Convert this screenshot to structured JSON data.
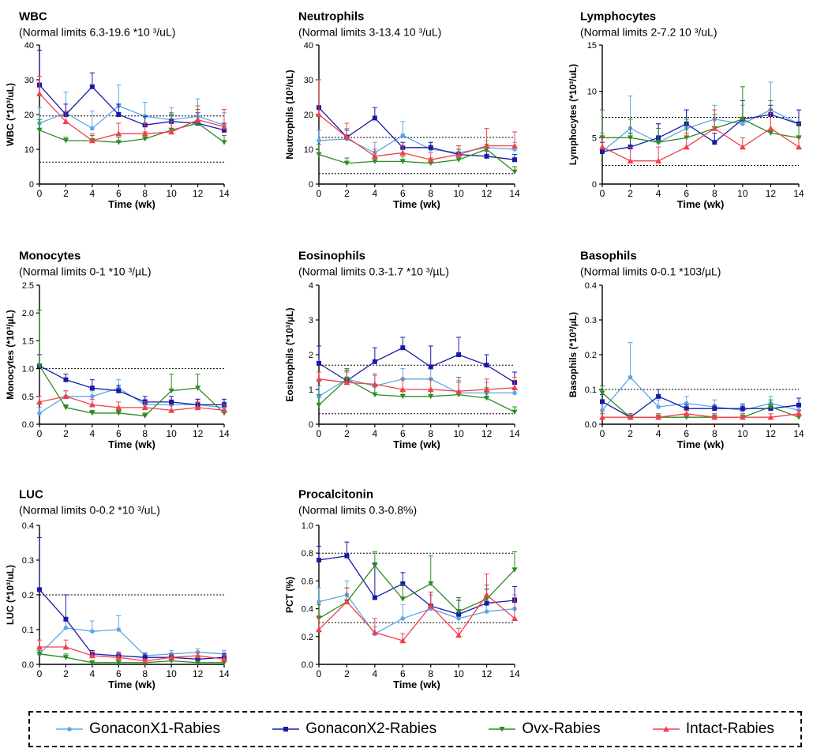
{
  "x": [
    0,
    2,
    4,
    6,
    8,
    10,
    12,
    14
  ],
  "xlabel": "Time (wk)",
  "series": [
    {
      "name": "GonaconX1-Rabies",
      "color": "#5aa8e8",
      "marker": "circle"
    },
    {
      "name": "GonaconX2-Rabies",
      "color": "#1a1aa8",
      "marker": "square"
    },
    {
      "name": "Ovx-Rabies",
      "color": "#2e8b22",
      "marker": "triangle-down"
    },
    {
      "name": "Intact-Rabies",
      "color": "#f0404a",
      "marker": "triangle-up"
    }
  ],
  "chart_data": [
    {
      "type": "line",
      "title": "WBC",
      "subtitle": "(Normal limits 6.3-19.6 *10 ³/uL)",
      "ylabel": "WBC (*10³/uL)",
      "ylim": [
        0,
        40
      ],
      "yticks": [
        0,
        10,
        20,
        30,
        40
      ],
      "ytick_labels": [
        "0",
        "10",
        "20",
        "30",
        "40"
      ],
      "normal_limits": [
        6.3,
        19.6
      ],
      "series": [
        {
          "name": "GonaconX1-Rabies",
          "values": [
            17.5,
            20.5,
            16,
            22.5,
            19.5,
            18.5,
            19.5,
            17
          ],
          "errors": [
            4.5,
            6,
            5,
            6,
            4,
            3.5,
            5,
            3.5
          ]
        },
        {
          "name": "GonaconX2-Rabies",
          "values": [
            28.5,
            20,
            28,
            20,
            17,
            18,
            17.5,
            15.5
          ],
          "errors": [
            10,
            3,
            4,
            3,
            2.5,
            2,
            3,
            2
          ]
        },
        {
          "name": "Ovx-Rabies",
          "values": [
            15.5,
            12.5,
            12.5,
            12,
            13,
            15.5,
            17.5,
            12
          ],
          "errors": [
            3,
            1,
            1.5,
            1.5,
            2,
            5,
            4,
            2
          ]
        },
        {
          "name": "Intact-Rabies",
          "values": [
            26,
            18,
            12.5,
            14.5,
            14.5,
            15,
            18.5,
            16.5
          ],
          "errors": [
            5,
            3,
            2,
            3,
            3,
            3,
            4,
            5
          ]
        }
      ]
    },
    {
      "type": "line",
      "title": "Neutrophils",
      "subtitle": "(Normal limits 3-13.4 10 ³/uL)",
      "ylabel": "Neutrophils (10³/uL)",
      "ylim": [
        0,
        40
      ],
      "yticks": [
        0,
        10,
        20,
        30,
        40
      ],
      "ytick_labels": [
        "0",
        "10",
        "20",
        "30",
        "40"
      ],
      "normal_limits": [
        3,
        13.4
      ],
      "series": [
        {
          "name": "GonaconX1-Rabies",
          "values": [
            12.5,
            13,
            9,
            14,
            10,
            9,
            10.5,
            10
          ],
          "errors": [
            3,
            3,
            3,
            4,
            2,
            2,
            2,
            2
          ]
        },
        {
          "name": "GonaconX2-Rabies",
          "values": [
            22,
            13.5,
            19,
            10.5,
            10.5,
            8.5,
            8,
            7
          ],
          "errors": [
            8,
            2,
            3,
            1.5,
            1.5,
            1.5,
            1.5,
            1.5
          ]
        },
        {
          "name": "Ovx-Rabies",
          "values": [
            8.5,
            6,
            6.5,
            6.5,
            6,
            7,
            10,
            3.5
          ],
          "errors": [
            3,
            1.5,
            1.5,
            1.5,
            1.5,
            3,
            1.5,
            1.5
          ]
        },
        {
          "name": "Intact-Rabies",
          "values": [
            20,
            13.5,
            8,
            9,
            7,
            8.5,
            11,
            11
          ],
          "errors": [
            10,
            4,
            2,
            2,
            2,
            2.5,
            5,
            4
          ]
        }
      ]
    },
    {
      "type": "line",
      "title": "Lymphocytes",
      "subtitle": "(Normal limits 2-7.2 10 ³/uL)",
      "ylabel": "Lymphocytes (*10³/uL)",
      "ylim": [
        0,
        15
      ],
      "yticks": [
        0,
        5,
        10,
        15
      ],
      "ytick_labels": [
        "0",
        "5",
        "10",
        "15"
      ],
      "normal_limits": [
        2,
        7.2
      ],
      "series": [
        {
          "name": "GonaconX1-Rabies",
          "values": [
            3.5,
            6,
            4.5,
            6,
            7,
            6.5,
            8,
            6.5
          ],
          "errors": [
            2,
            3.5,
            2,
            2,
            1.5,
            2,
            3,
            1.5
          ]
        },
        {
          "name": "GonaconX2-Rabies",
          "values": [
            3.5,
            4,
            5,
            6.5,
            4.5,
            7,
            7.5,
            6.5
          ],
          "errors": [
            1,
            1.5,
            1.5,
            1.5,
            1,
            2,
            1,
            1.5
          ]
        },
        {
          "name": "Ovx-Rabies",
          "values": [
            5,
            5,
            4.5,
            5,
            6,
            7,
            5.5,
            5
          ],
          "errors": [
            3,
            2,
            1.5,
            2,
            1.5,
            3.5,
            3.5,
            1.5
          ]
        },
        {
          "name": "Intact-Rabies",
          "values": [
            4,
            2.5,
            2.5,
            4,
            6,
            4,
            6,
            4
          ],
          "errors": [
            1,
            1.5,
            1.5,
            1.5,
            2,
            1,
            2,
            1
          ]
        }
      ]
    },
    {
      "type": "line",
      "title": "Monocytes",
      "subtitle": "(Normal limits 0-1 *10 ³/µL)",
      "ylabel": "Monocytes (*10³/µL)",
      "ylim": [
        0,
        2.5
      ],
      "yticks": [
        0,
        0.5,
        1,
        1.5,
        2,
        2.5
      ],
      "ytick_labels": [
        "0.0",
        "0.5",
        "1.0",
        "1.5",
        "2.0",
        "2.5"
      ],
      "normal_limits": [
        0,
        1
      ],
      "series": [
        {
          "name": "GonaconX1-Rabies",
          "values": [
            0.2,
            0.5,
            0.5,
            0.65,
            0.35,
            0.35,
            0.35,
            0.3
          ],
          "errors": [
            0.1,
            0.1,
            0.1,
            0.15,
            0.1,
            0.05,
            0.1,
            0.1
          ]
        },
        {
          "name": "GonaconX2-Rabies",
          "values": [
            1.05,
            0.8,
            0.65,
            0.6,
            0.4,
            0.4,
            0.35,
            0.35
          ],
          "errors": [
            0.2,
            0.1,
            0.15,
            0.1,
            0.1,
            0.1,
            0.1,
            0.1
          ]
        },
        {
          "name": "Ovx-Rabies",
          "values": [
            1.05,
            0.3,
            0.2,
            0.2,
            0.15,
            0.6,
            0.65,
            0.2
          ],
          "errors": [
            1,
            0.05,
            0.05,
            0.05,
            0.05,
            0.3,
            0.25,
            0.05
          ]
        },
        {
          "name": "Intact-Rabies",
          "values": [
            0.4,
            0.5,
            0.35,
            0.3,
            0.3,
            0.25,
            0.3,
            0.25
          ],
          "errors": [
            0.1,
            0.1,
            0.1,
            0.1,
            0.1,
            0.1,
            0.1,
            0.1
          ]
        }
      ]
    },
    {
      "type": "line",
      "title": "Eosinophils",
      "subtitle": "(Normal limits 0.3-1.7 *10 ³/µL)",
      "ylabel": "Eosinophils (*10³/µL)",
      "ylim": [
        0,
        4
      ],
      "yticks": [
        0,
        1,
        2,
        3,
        4
      ],
      "ytick_labels": [
        "0",
        "1",
        "2",
        "3",
        "4"
      ],
      "normal_limits": [
        0.3,
        1.7
      ],
      "series": [
        {
          "name": "GonaconX1-Rabies",
          "values": [
            0.8,
            1.3,
            1.1,
            1.3,
            1.3,
            0.9,
            0.9,
            0.9
          ],
          "errors": [
            0.3,
            0.3,
            0.3,
            0.3,
            0.3,
            0.3,
            0.3,
            0.3
          ]
        },
        {
          "name": "GonaconX2-Rabies",
          "values": [
            1.75,
            1.25,
            1.8,
            2.2,
            1.65,
            2,
            1.7,
            1.2
          ],
          "errors": [
            0.5,
            0.3,
            0.4,
            0.3,
            0.6,
            0.5,
            0.3,
            0.3
          ]
        },
        {
          "name": "Ovx-Rabies",
          "values": [
            0.55,
            1.3,
            0.85,
            0.8,
            0.8,
            0.85,
            0.75,
            0.35
          ],
          "errors": [
            0.3,
            0.3,
            0.3,
            0.2,
            0.2,
            0.5,
            0.3,
            0.15
          ]
        },
        {
          "name": "Intact-Rabies",
          "values": [
            1.3,
            1.2,
            1.15,
            1,
            1,
            0.95,
            1,
            1.05
          ],
          "errors": [
            0.2,
            0.3,
            0.3,
            0.3,
            0.3,
            0.3,
            0.3,
            0.3
          ]
        }
      ]
    },
    {
      "type": "line",
      "title": "Basophils",
      "subtitle": "(Normal limits 0-0.1 *103/µL)",
      "ylabel": "Basophils (*10³/µL)",
      "ylim": [
        0,
        0.4
      ],
      "yticks": [
        0,
        0.1,
        0.2,
        0.3,
        0.4
      ],
      "ytick_labels": [
        "0.0",
        "0.1",
        "0.2",
        "0.3",
        "0.4"
      ],
      "normal_limits": [
        0,
        0.1
      ],
      "series": [
        {
          "name": "GonaconX1-Rabies",
          "values": [
            0.04,
            0.135,
            0.05,
            0.06,
            0.05,
            0.04,
            0.06,
            0.04
          ],
          "errors": [
            0.02,
            0.1,
            0.02,
            0.02,
            0.02,
            0.02,
            0.02,
            0.02
          ]
        },
        {
          "name": "GonaconX2-Rabies",
          "values": [
            0.065,
            0.02,
            0.08,
            0.045,
            0.045,
            0.045,
            0.045,
            0.055
          ],
          "errors": [
            0.02,
            0.01,
            0.02,
            0.01,
            0.01,
            0.01,
            0.01,
            0.02
          ]
        },
        {
          "name": "Ovx-Rabies",
          "values": [
            0.09,
            0.02,
            0.02,
            0.02,
            0.02,
            0.02,
            0.05,
            0.02
          ],
          "errors": [
            0.02,
            0.01,
            0.01,
            0.01,
            0.01,
            0.01,
            0.02,
            0.01
          ]
        },
        {
          "name": "Intact-Rabies",
          "values": [
            0.02,
            0.02,
            0.02,
            0.03,
            0.02,
            0.02,
            0.02,
            0.03
          ],
          "errors": [
            0.01,
            0.01,
            0.01,
            0.01,
            0.01,
            0.01,
            0.01,
            0.01
          ]
        }
      ]
    },
    {
      "type": "line",
      "title": "LUC",
      "subtitle": "(Normal limits 0-0.2 *10 ³/uL)",
      "ylabel": "LUC (*10³/uL)",
      "ylim": [
        0,
        0.4
      ],
      "yticks": [
        0,
        0.1,
        0.2,
        0.3,
        0.4
      ],
      "ytick_labels": [
        "0.0",
        "0.1",
        "0.2",
        "0.3",
        "0.4"
      ],
      "normal_limits": [
        0,
        0.2
      ],
      "series": [
        {
          "name": "GonaconX1-Rabies",
          "values": [
            0.03,
            0.105,
            0.095,
            0.1,
            0.025,
            0.03,
            0.035,
            0.03
          ],
          "errors": [
            0.02,
            0.03,
            0.03,
            0.04,
            0.01,
            0.01,
            0.01,
            0.01
          ]
        },
        {
          "name": "GonaconX2-Rabies",
          "values": [
            0.215,
            0.13,
            0.03,
            0.025,
            0.02,
            0.02,
            0.015,
            0.02
          ],
          "errors": [
            0.15,
            0.07,
            0.01,
            0.01,
            0.01,
            0.01,
            0.01,
            0.01
          ]
        },
        {
          "name": "Ovx-Rabies",
          "values": [
            0.03,
            0.02,
            0.005,
            0.005,
            0.005,
            0.01,
            0.005,
            0.005
          ],
          "errors": [
            0.01,
            0.01,
            0.005,
            0.005,
            0.005,
            0.005,
            0.005,
            0.005
          ]
        },
        {
          "name": "Intact-Rabies",
          "values": [
            0.05,
            0.05,
            0.025,
            0.02,
            0.01,
            0.02,
            0.025,
            0.015
          ],
          "errors": [
            0.02,
            0.02,
            0.01,
            0.01,
            0.005,
            0.01,
            0.01,
            0.01
          ]
        }
      ]
    },
    {
      "type": "line",
      "title": "Procalcitonin",
      "subtitle": "(Normal limits 0.3-0.8%)",
      "ylabel": "PCT (%)",
      "ylim": [
        0,
        1
      ],
      "yticks": [
        0,
        0.2,
        0.4,
        0.6,
        0.8,
        1
      ],
      "ytick_labels": [
        "0.0",
        "0.2",
        "0.4",
        "0.6",
        "0.8",
        "1.0"
      ],
      "normal_limits": [
        0.3,
        0.8
      ],
      "series": [
        {
          "name": "GonaconX1-Rabies",
          "values": [
            0.45,
            0.5,
            0.22,
            0.33,
            0.4,
            0.33,
            0.38,
            0.4
          ],
          "errors": [
            0.1,
            0.1,
            0.05,
            0.1,
            0.1,
            0.15,
            0.1,
            0.1
          ]
        },
        {
          "name": "GonaconX2-Rabies",
          "values": [
            0.75,
            0.78,
            0.48,
            0.58,
            0.42,
            0.36,
            0.44,
            0.46
          ],
          "errors": [
            0.1,
            0.1,
            0.25,
            0.08,
            0.1,
            0.1,
            0.1,
            0.1
          ]
        },
        {
          "name": "Ovx-Rabies",
          "values": [
            0.33,
            0.45,
            0.71,
            0.47,
            0.58,
            0.38,
            0.47,
            0.68
          ],
          "errors": [
            0.1,
            0.1,
            0.1,
            0.1,
            0.2,
            0.1,
            0.1,
            0.13
          ]
        },
        {
          "name": "Intact-Rabies",
          "values": [
            0.25,
            0.45,
            0.23,
            0.17,
            0.42,
            0.21,
            0.5,
            0.33
          ],
          "errors": [
            0.1,
            0.1,
            0.1,
            0.05,
            0.1,
            0.05,
            0.15,
            0.15
          ]
        }
      ]
    }
  ]
}
